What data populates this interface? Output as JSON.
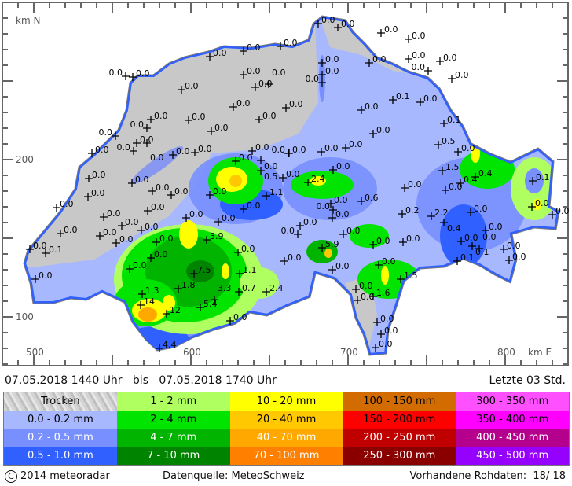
{
  "map": {
    "axis_north_label": "km N",
    "axis_east_label": "km E",
    "y_ticks": [
      "200",
      "100"
    ],
    "x_ticks": [
      "500",
      "600",
      "700",
      "800"
    ],
    "stations": [
      "0.0",
      "0.0",
      "0.0",
      "0.0",
      "0.0",
      "0.0",
      "0.0",
      "0.0",
      "0.0",
      "0.0",
      "0.0",
      "0.0",
      "0.0",
      "0.0",
      "0.0",
      "0.0",
      "0.0",
      "0.0",
      "0.0",
      "0.0",
      "0.0",
      "0.0",
      "0.0",
      "0.0",
      "0.0",
      "0.5",
      "0.0",
      "0.0",
      "0.0",
      "0.0",
      "0.0",
      "0.0",
      "0.0",
      "0.0",
      "1.1",
      "0.0",
      "0.0",
      "0.0",
      "0.0",
      "0.0",
      "0.0",
      "0.0",
      "0.0",
      "0.0",
      "0.0",
      "0.0",
      "3.9",
      "0.0",
      "0.0",
      "0.0",
      "0.0",
      "0.0",
      "7.5",
      "1.8",
      "1.3",
      "14",
      "12",
      "5.4",
      "3.3",
      "1.1",
      "0.7",
      "2.4",
      "0.0",
      "4.4",
      "0.0",
      "0.0",
      "0.1",
      "0.0",
      "0.0",
      "0.0",
      "2.4",
      "0.0",
      "0.6",
      "0.0",
      "0.0",
      "0.0",
      "0.2",
      "0.0",
      "0.0",
      "0.0",
      "0.0",
      "0.0",
      "5.9",
      "0.0",
      "0.0",
      "0.0",
      "1.5",
      "0.0",
      "1.6",
      "0.0",
      "0.0",
      "0.0",
      "0.0",
      "0.0",
      "0.0",
      "0.0",
      "0.0",
      "0.0",
      "0.0",
      "0.0",
      "0.0",
      "0.1",
      "0.0",
      "0.1",
      "0.0",
      "0.0",
      "0.0",
      "0.5",
      "0.0",
      "1.5",
      "0.4",
      "0.4",
      "0.0",
      "0.1",
      "0.0",
      "0.0",
      "2.2",
      "0.4",
      "0.0",
      "0.0",
      "0.0",
      "0.1",
      "0.0",
      "0.0",
      "0.1",
      "0.0",
      "0.0",
      "0.0",
      "0.0",
      "0.0"
    ]
  },
  "header": {
    "period": "07.05.2018 1440 Uhr   bis   07.05.2018 1740 Uhr",
    "window": "Letzte 03 Std."
  },
  "legend": [
    {
      "label": "Trocken",
      "color": "#c8c8c8"
    },
    {
      "label": "1 - 2 mm",
      "color": "#b0ff60"
    },
    {
      "label": "10 - 20 mm",
      "color": "#ffff00"
    },
    {
      "label": "100 - 150 mm",
      "color": "#d26c00"
    },
    {
      "label": "300 - 350 mm",
      "color": "#ff50ff"
    },
    {
      "label": "0.0 - 0.2 mm",
      "color": "#a8b8ff"
    },
    {
      "label": "2 - 4 mm",
      "color": "#00e400"
    },
    {
      "label": "20 - 40 mm",
      "color": "#ffc800"
    },
    {
      "label": "150 - 200 mm",
      "color": "#ff0000"
    },
    {
      "label": "350 - 400 mm",
      "color": "#ff00ff"
    },
    {
      "label": "0.2 - 0.5 mm",
      "color": "#7890ff"
    },
    {
      "label": "4 - 7 mm",
      "color": "#00b400"
    },
    {
      "label": "40 - 70 mm",
      "color": "#ffa800"
    },
    {
      "label": "200 - 250 mm",
      "color": "#c00000"
    },
    {
      "label": "400 - 450 mm",
      "color": "#b4008c"
    },
    {
      "label": "0.5 - 1.0 mm",
      "color": "#3060ff"
    },
    {
      "label": "7 - 10 mm",
      "color": "#008400"
    },
    {
      "label": "70 - 100 mm",
      "color": "#ff8000"
    },
    {
      "label": "250 - 300 mm",
      "color": "#8a0000"
    },
    {
      "label": "450 - 500 mm",
      "color": "#9600ff"
    }
  ],
  "footer": {
    "copyright_symbol": "C",
    "copyright": "2014  meteoradar",
    "source": "Datenquelle: MeteoSchweiz",
    "raw_data": "Vorhandene Rohdaten:  18/ 18"
  }
}
